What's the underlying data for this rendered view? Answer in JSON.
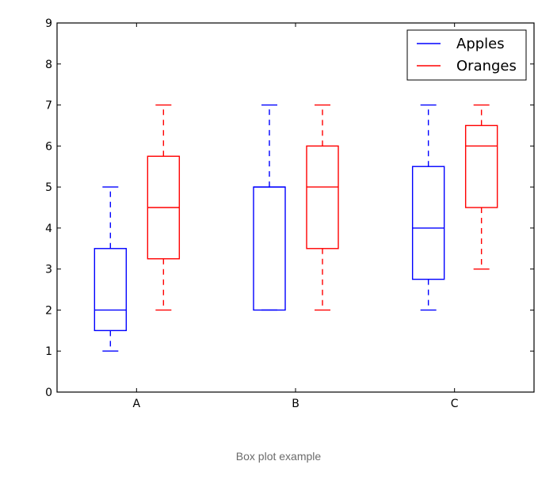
{
  "chart_data": {
    "type": "box",
    "title": "",
    "xlabel": "",
    "ylabel": "",
    "categories": [
      "A",
      "B",
      "C"
    ],
    "ylim": [
      0,
      9
    ],
    "yticks": [
      "0",
      "1",
      "2",
      "3",
      "4",
      "5",
      "6",
      "7",
      "8",
      "9"
    ],
    "grid": false,
    "legend_position": "top-right",
    "series": [
      {
        "name": "Apples",
        "color": "#0000ff",
        "boxes": [
          {
            "category": "A",
            "whisker_low": 1,
            "q1": 1.5,
            "median": 2,
            "q3": 3.5,
            "whisker_high": 5
          },
          {
            "category": "B",
            "whisker_low": 2,
            "q1": 2,
            "median": 5,
            "q3": 5,
            "whisker_high": 7
          },
          {
            "category": "C",
            "whisker_low": 2,
            "q1": 2.75,
            "median": 4,
            "q3": 5.5,
            "whisker_high": 7
          }
        ]
      },
      {
        "name": "Oranges",
        "color": "#ff0000",
        "boxes": [
          {
            "category": "A",
            "whisker_low": 2,
            "q1": 3.25,
            "median": 4.5,
            "q3": 5.75,
            "whisker_high": 7
          },
          {
            "category": "B",
            "whisker_low": 2,
            "q1": 3.5,
            "median": 5,
            "q3": 6,
            "whisker_high": 7
          },
          {
            "category": "C",
            "whisker_low": 3,
            "q1": 4.5,
            "median": 6,
            "q3": 6.5,
            "whisker_high": 7
          }
        ]
      }
    ]
  },
  "caption": "Box plot example"
}
